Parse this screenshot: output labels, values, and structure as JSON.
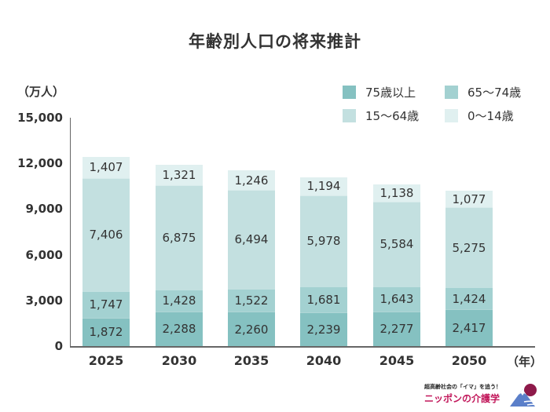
{
  "chart_data": {
    "type": "bar",
    "stacked": true,
    "title": "年齢別人口の将来推計",
    "xlabel": "（年）",
    "ylabel": "（万人）",
    "ylim": [
      0,
      15000
    ],
    "yticks": [
      "15,000",
      "12,000",
      "9,000",
      "6,000",
      "3,000",
      "0"
    ],
    "categories": [
      "2025",
      "2030",
      "2035",
      "2040",
      "2045",
      "2050"
    ],
    "series": [
      {
        "name": "75歳以上",
        "color": "#85c1c1",
        "values": [
          1872,
          2288,
          2260,
          2239,
          2277,
          2417
        ],
        "labels": [
          "1,872",
          "2,288",
          "2,260",
          "2,239",
          "2,277",
          "2,417"
        ]
      },
      {
        "name": "65〜74歳",
        "color": "#a3d1d1",
        "values": [
          1747,
          1428,
          1522,
          1681,
          1643,
          1424
        ],
        "labels": [
          "1,747",
          "1,428",
          "1,522",
          "1,681",
          "1,643",
          "1,424"
        ]
      },
      {
        "name": "15〜64歳",
        "color": "#c3e0e0",
        "values": [
          7406,
          6875,
          6494,
          5978,
          5584,
          5275
        ],
        "labels": [
          "7,406",
          "6,875",
          "6,494",
          "5,978",
          "5,584",
          "5,275"
        ]
      },
      {
        "name": "0〜14歳",
        "color": "#e0f0f0",
        "values": [
          1407,
          1321,
          1246,
          1194,
          1138,
          1077
        ],
        "labels": [
          "1,407",
          "1,321",
          "1,246",
          "1,194",
          "1,138",
          "1,077"
        ]
      }
    ],
    "legend_position": "top-right",
    "grid": false
  },
  "logo": {
    "tagline": "超高齢社会の「イマ」を追う！",
    "brand": "ニッポンの介護学"
  }
}
